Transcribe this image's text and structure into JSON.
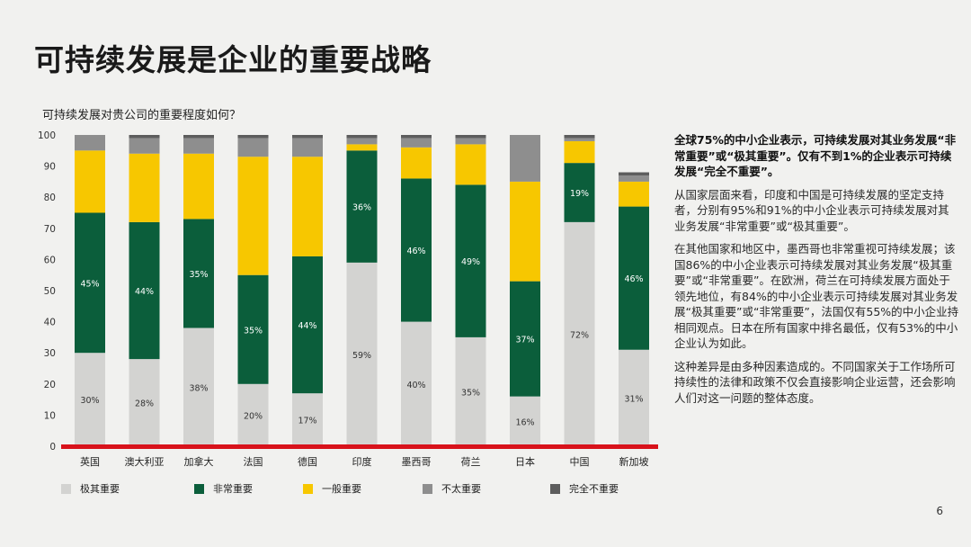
{
  "page": {
    "title": "可持续发展是企业的重要战略",
    "page_number": "6"
  },
  "colors": {
    "extremely_important": "#d3d3d1",
    "very_important": "#0b5e3b",
    "somewhat_important": "#f7c700",
    "not_very_important": "#8e8e8e",
    "not_at_all_important": "#5d5d5d",
    "baseline": "#d8121b"
  },
  "chart_data": {
    "type": "bar",
    "stacked": true,
    "title": "可持续发展对贵公司的重要程度如何？",
    "categories": [
      "英国",
      "澳大利亚",
      "加拿大",
      "法国",
      "德国",
      "印度",
      "墨西哥",
      "荷兰",
      "日本",
      "中国",
      "新加坡"
    ],
    "ylim": [
      0,
      100
    ],
    "yticks": [
      0,
      10,
      20,
      30,
      40,
      50,
      60,
      70,
      80,
      90,
      100
    ],
    "grid": false,
    "legend_position": "bottom",
    "series": [
      {
        "name": "极其重要",
        "color": "#d3d3d1",
        "values": [
          30,
          28,
          38,
          20,
          17,
          59,
          40,
          35,
          16,
          72,
          31
        ],
        "labels": [
          "30%",
          "28%",
          "38%",
          "20%",
          "17%",
          "59%",
          "40%",
          "35%",
          "16%",
          "72%",
          "31%"
        ]
      },
      {
        "name": "非常重要",
        "color": "#0b5e3b",
        "values": [
          45,
          44,
          35,
          35,
          44,
          36,
          46,
          49,
          37,
          19,
          46
        ],
        "labels": [
          "45%",
          "44%",
          "35%",
          "35%",
          "44%",
          "36%",
          "46%",
          "49%",
          "37%",
          "19%",
          "46%"
        ]
      },
      {
        "name": "一般重要",
        "color": "#f7c700",
        "values": [
          20,
          22,
          21,
          38,
          32,
          2,
          10,
          13,
          32,
          7,
          8
        ],
        "labels": [
          "",
          "",
          "",
          "",
          "",
          "",
          "",
          "",
          "",
          "",
          ""
        ]
      },
      {
        "name": "不太重要",
        "color": "#8e8e8e",
        "values": [
          5,
          5,
          5,
          6,
          6,
          2,
          3,
          2,
          15,
          1,
          2
        ],
        "labels": [
          "",
          "",
          "",
          "",
          "",
          "",
          "",
          "",
          "",
          "",
          ""
        ]
      },
      {
        "name": "完全不重要",
        "color": "#5d5d5d",
        "values": [
          0,
          1,
          1,
          1,
          1,
          1,
          1,
          1,
          0,
          1,
          1
        ],
        "labels": [
          "",
          "",
          "",
          "",
          "",
          "",
          "",
          "",
          "",
          "",
          ""
        ]
      }
    ]
  },
  "side_text": {
    "lead": "全球75%的中小企业表示，可持续发展对其业务发展“非常重要”或“极其重要”。仅有不到1%的企业表示可持续发展“完全不重要”。",
    "p1": "从国家层面来看，印度和中国是可持续发展的坚定支持者，分别有95%和91%的中小企业表示可持续发展对其业务发展“非常重要”或“极其重要”。",
    "p2": "在其他国家和地区中，墨西哥也非常重视可持续发展；该国86%的中小企业表示可持续发展对其业务发展“极其重要”或“非常重要”。在欧洲，荷兰在可持续发展方面处于领先地位，有84%的中小企业表示可持续发展对其业务发展“极其重要”或“非常重要”，法国仅有55%的中小企业持相同观点。日本在所有国家中排名最低，仅有53%的中小企业认为如此。",
    "p3": "这种差异是由多种因素造成的。不同国家关于工作场所可持续性的法律和政策不仅会直接影响企业运营，还会影响人们对这一问题的整体态度。"
  }
}
